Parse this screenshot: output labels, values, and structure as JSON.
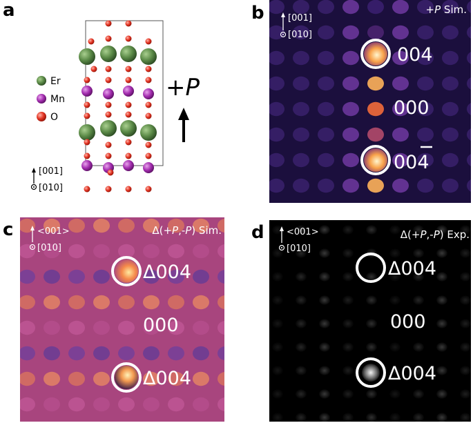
{
  "panels": {
    "a": {
      "letter": "a",
      "legend": [
        "Er",
        "Mn",
        "O"
      ],
      "polarization_label": "+P",
      "axis_up": "[001]",
      "axis_out": "[010]",
      "colors": {
        "Er": "#4e7a3f",
        "Mn": "#9a2aa0",
        "O": "#e0301e"
      }
    },
    "b": {
      "letter": "b",
      "title_prefix": "+",
      "title_italic": "P",
      "title_suffix": " Sim.",
      "axis_up": "[001]",
      "axis_out": "[010]",
      "labels": {
        "top": "004",
        "center": "000",
        "bottom_digits": "00",
        "bottom_last": "4"
      },
      "background": "#1b0f3d"
    },
    "c": {
      "letter": "c",
      "title_prefix": "Δ(+",
      "title_italic_1": "P",
      "title_mid": ",-",
      "title_italic_2": "P",
      "title_suffix": ") Sim.",
      "axis_up": "<001>",
      "axis_out": "[010]",
      "labels": {
        "top": "Δ004",
        "center": "000",
        "bottom": "Δ004"
      },
      "background": "#a8457e"
    },
    "d": {
      "letter": "d",
      "title_prefix": "Δ(+",
      "title_italic_1": "P",
      "title_mid": ",-",
      "title_italic_2": "P",
      "title_suffix": ") Exp.",
      "axis_up": "<001>",
      "axis_out": "[010]",
      "labels": {
        "top": "Δ004",
        "center": "000",
        "bottom": "Δ004"
      },
      "background": "#000000"
    }
  }
}
